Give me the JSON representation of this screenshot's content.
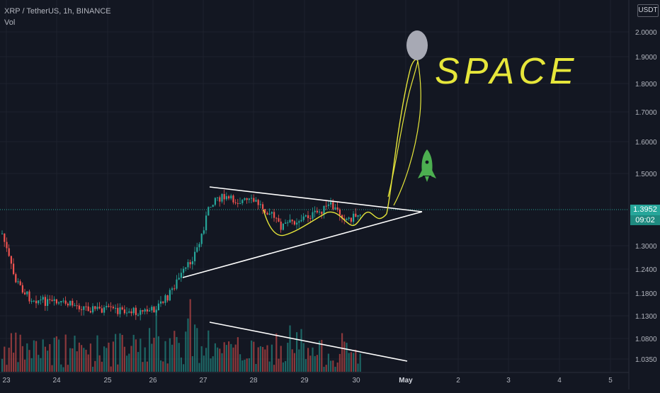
{
  "header": {
    "symbol": "XRP / TetherUS, 1h, BINANCE",
    "indicator": "Vol",
    "currency": "USDT"
  },
  "price_tag": {
    "price": "1.3952",
    "countdown": "09:02"
  },
  "annotation": {
    "text": "SPACE"
  },
  "colors": {
    "bg": "#131722",
    "up": "#26a69a",
    "down": "#ef5350",
    "drawing": "#e6e63a",
    "rocket": "#4caf50"
  },
  "chart_data": {
    "type": "candlestick",
    "x_ticks": [
      "23",
      "24",
      "25",
      "26",
      "27",
      "28",
      "29",
      "30",
      "May",
      "2",
      "3",
      "4",
      "5"
    ],
    "y_ticks": [
      "2.0000",
      "1.9000",
      "1.8000",
      "1.7000",
      "1.6000",
      "1.5000",
      "1.3000",
      "1.2400",
      "1.1800",
      "1.1300",
      "1.0800",
      "1.0350"
    ],
    "ylim": [
      1.02,
      2.08
    ],
    "grid": true,
    "last_price": 1.3952
  }
}
